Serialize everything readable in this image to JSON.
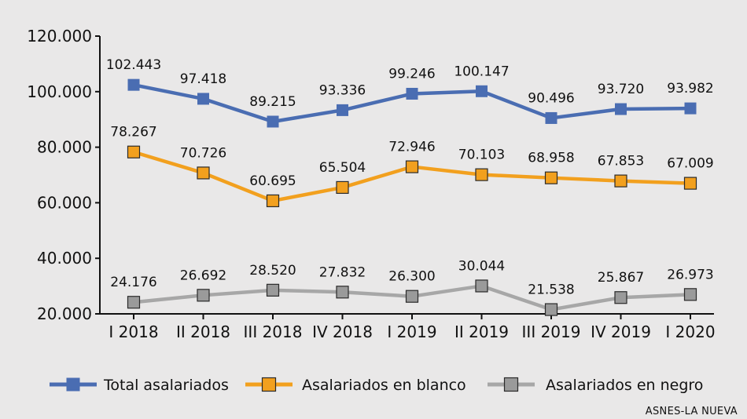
{
  "chart_data": {
    "type": "line",
    "title": "",
    "xlabel": "",
    "ylabel": "",
    "categories": [
      "I 2018",
      "II 2018",
      "III 2018",
      "IV 2018",
      "I 2019",
      "II 2019",
      "III 2019",
      "IV 2019",
      "I 2020"
    ],
    "y_ticks": [
      20000,
      40000,
      60000,
      80000,
      100000,
      120000
    ],
    "y_tick_labels": [
      "20.000",
      "40.000",
      "60.000",
      "80.000",
      "100.000",
      "120.000"
    ],
    "ylim": [
      20000,
      120000
    ],
    "grid": false,
    "legend_position": "bottom",
    "series": [
      {
        "name": "Total asalariados",
        "color": "#4a6db2",
        "marker_color": "#4a6db2",
        "values": [
          102443,
          97418,
          89215,
          93336,
          99246,
          100147,
          90496,
          93720,
          93982
        ],
        "labels": [
          "102.443",
          "97.418",
          "89.215",
          "93.336",
          "99.246",
          "100.147",
          "90.496",
          "93.720",
          "93.982"
        ]
      },
      {
        "name": "Asalariados en blanco",
        "color": "#f2a01e",
        "marker_color": "#f2a01e",
        "values": [
          78267,
          70726,
          60695,
          65504,
          72946,
          70103,
          68958,
          67853,
          67009
        ],
        "labels": [
          "78.267",
          "70.726",
          "60.695",
          "65.504",
          "72.946",
          "70.103",
          "68.958",
          "67.853",
          "67.009"
        ]
      },
      {
        "name": "Asalariados en negro",
        "color": "#a7a7a7",
        "marker_color": "#9a9a9a",
        "values": [
          24176,
          26692,
          28520,
          27832,
          26300,
          30044,
          21538,
          25867,
          26973
        ],
        "labels": [
          "24.176",
          "26.692",
          "28.520",
          "27.832",
          "26.300",
          "30.044",
          "21.538",
          "25.867",
          "26.973"
        ]
      }
    ]
  },
  "source": "ASNES-LA NUEVA"
}
